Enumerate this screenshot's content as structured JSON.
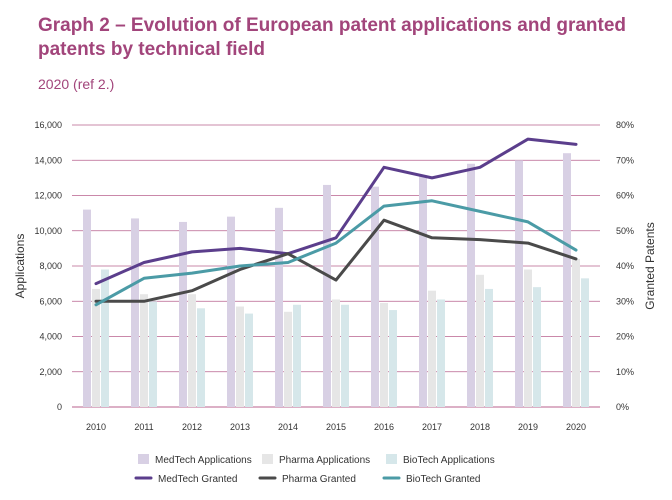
{
  "header": {
    "title": "Graph 2 – Evolution of European patent applications and granted patents by technical field",
    "subtitle": "2020 (ref 2.)"
  },
  "chart_data": {
    "type": "bar",
    "title": "Graph 2 – Evolution of European patent applications and granted patents by technical field",
    "subtitle": "2020 (ref 2.)",
    "categories": [
      "2010",
      "2011",
      "2012",
      "2013",
      "2014",
      "2015",
      "2016",
      "2017",
      "2018",
      "2019",
      "2020"
    ],
    "ylabel": "Applications",
    "y2label": "Granted Patents",
    "ylim": [
      0,
      16000
    ],
    "y2lim": [
      0,
      80
    ],
    "yticks": [
      "0",
      "2,000",
      "4,000",
      "6,000",
      "8,000",
      "10,000",
      "12,000",
      "14,000",
      "16,000"
    ],
    "y2ticks": [
      "0%",
      "10%",
      "20%",
      "30%",
      "40%",
      "50%",
      "60%",
      "70%",
      "80%"
    ],
    "colors": {
      "grid": "#b8608e",
      "medtech_app": "#d8d0e4",
      "pharma_app": "#e6e6e6",
      "biotech_app": "#d6e7ea",
      "medtech_granted": "#5b3e8c",
      "pharma_granted": "#4a4a4a",
      "biotech_granted": "#4b9ba6"
    },
    "bar_series": [
      {
        "name": "MedTech Applications",
        "color_key": "medtech_app",
        "values": [
          11200,
          10700,
          10500,
          10800,
          11300,
          12600,
          12500,
          13100,
          13800,
          14000,
          14400
        ]
      },
      {
        "name": "Pharma Applications",
        "color_key": "pharma_app",
        "values": [
          6700,
          6400,
          6400,
          5700,
          5400,
          6100,
          5900,
          6600,
          7500,
          7800,
          8400
        ]
      },
      {
        "name": "BioTech Applications",
        "color_key": "biotech_app",
        "values": [
          7800,
          6000,
          5600,
          5300,
          5800,
          5800,
          5500,
          6100,
          6700,
          6800,
          7300
        ]
      }
    ],
    "line_series": [
      {
        "name": "MedTech Granted",
        "color_key": "medtech_granted",
        "values": [
          35,
          41,
          44,
          45,
          43.5,
          48,
          68,
          65,
          68,
          76,
          74.5
        ]
      },
      {
        "name": "Pharma Granted",
        "color_key": "pharma_granted",
        "values": [
          30,
          30,
          33,
          39,
          43.5,
          36,
          53,
          48,
          47.5,
          46.5,
          42
        ]
      },
      {
        "name": "BioTech Granted",
        "color_key": "biotech_granted",
        "values": [
          29,
          36.5,
          38,
          40,
          41,
          46.5,
          57,
          58.5,
          55.5,
          52.5,
          44.5
        ]
      }
    ]
  }
}
